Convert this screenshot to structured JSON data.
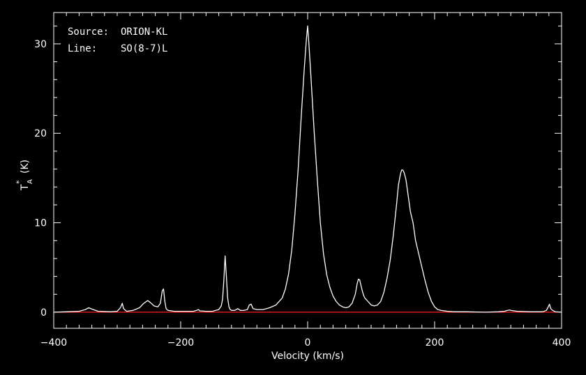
{
  "chart_data": {
    "type": "line",
    "annotations": {
      "source_label": "Source:",
      "source_value": "ORION-KL",
      "line_label": "Line:",
      "line_value": "SO(8-7)L"
    },
    "xlabel": "Velocity (km/s)",
    "ylabel_main": "T",
    "ylabel_sub": "A",
    "ylabel_sup": "*",
    "ylabel_unit": "(K)",
    "xlim": [
      -400,
      400
    ],
    "ylim": [
      -1.8,
      33.5
    ],
    "xticks": [
      -400,
      -200,
      0,
      200,
      400
    ],
    "xtick_labels": [
      "−400",
      "−200",
      "0",
      "200",
      "400"
    ],
    "yticks": [
      0,
      10,
      20,
      30
    ],
    "ytick_labels": [
      "0",
      "10",
      "20",
      "30"
    ],
    "grid": false,
    "colors": {
      "background": "#000000",
      "axes": "#ffffff",
      "spectrum": "#ffffff",
      "baseline": "#ff2020"
    },
    "baseline_value": 0,
    "series": [
      {
        "x": [
          -400,
          -380,
          -360,
          -350,
          -345,
          -340,
          -330,
          -310,
          -300,
          -295,
          -292,
          -290,
          -285,
          -275,
          -265,
          -258,
          -252,
          -248,
          -242,
          -236,
          -232,
          -229,
          -227,
          -225,
          -223,
          -220,
          -210,
          -195,
          -180,
          -175,
          -172,
          -170,
          -160,
          -150,
          -140,
          -136,
          -134,
          -132,
          -130,
          -128,
          -126,
          -124,
          -122,
          -120,
          -115,
          -110,
          -106,
          -100,
          -95,
          -92,
          -89,
          -86,
          -80,
          -70,
          -60,
          -50,
          -40,
          -35,
          -30,
          -25,
          -20,
          -15,
          -10,
          -5,
          -2,
          0,
          2,
          5,
          10,
          15,
          20,
          25,
          30,
          35,
          40,
          45,
          50,
          55,
          60,
          65,
          70,
          75,
          78,
          80,
          82,
          84,
          86,
          88,
          90,
          95,
          100,
          105,
          110,
          115,
          120,
          125,
          130,
          135,
          140,
          143,
          146,
          148,
          150,
          152,
          155,
          158,
          162,
          166,
          170,
          175,
          180,
          185,
          190,
          195,
          200,
          205,
          210,
          220,
          230,
          250,
          280,
          300,
          310,
          315,
          318,
          320,
          330,
          350,
          370,
          376,
          379,
          381,
          383,
          386,
          390,
          400
        ],
        "y": [
          0.0,
          0.05,
          0.1,
          0.3,
          0.5,
          0.35,
          0.1,
          0.05,
          0.1,
          0.5,
          1.0,
          0.4,
          0.1,
          0.2,
          0.5,
          1.0,
          1.3,
          1.1,
          0.7,
          0.6,
          1.0,
          2.4,
          2.6,
          1.2,
          0.4,
          0.2,
          0.1,
          0.1,
          0.1,
          0.2,
          0.3,
          0.15,
          0.1,
          0.1,
          0.3,
          0.7,
          1.5,
          3.6,
          6.3,
          4.0,
          1.6,
          0.6,
          0.3,
          0.2,
          0.2,
          0.4,
          0.2,
          0.2,
          0.3,
          0.8,
          0.9,
          0.4,
          0.3,
          0.3,
          0.5,
          0.8,
          1.6,
          2.6,
          4.3,
          7.0,
          11.0,
          16.0,
          22.0,
          27.5,
          30.5,
          32.0,
          30.0,
          26.5,
          20.5,
          15.0,
          10.0,
          6.5,
          4.2,
          2.8,
          1.8,
          1.2,
          0.8,
          0.6,
          0.5,
          0.6,
          1.0,
          2.0,
          3.2,
          3.7,
          3.6,
          3.0,
          2.4,
          1.9,
          1.6,
          1.2,
          0.8,
          0.7,
          0.8,
          1.2,
          2.2,
          3.8,
          5.8,
          8.6,
          12.0,
          14.2,
          15.4,
          15.9,
          15.9,
          15.6,
          14.8,
          13.2,
          11.2,
          10.0,
          8.0,
          6.5,
          5.0,
          3.5,
          2.2,
          1.2,
          0.6,
          0.3,
          0.2,
          0.1,
          0.05,
          0.05,
          0.0,
          0.05,
          0.1,
          0.2,
          0.25,
          0.2,
          0.1,
          0.05,
          0.05,
          0.2,
          0.6,
          0.9,
          0.4,
          0.2,
          0.05,
          0.0
        ]
      }
    ]
  }
}
